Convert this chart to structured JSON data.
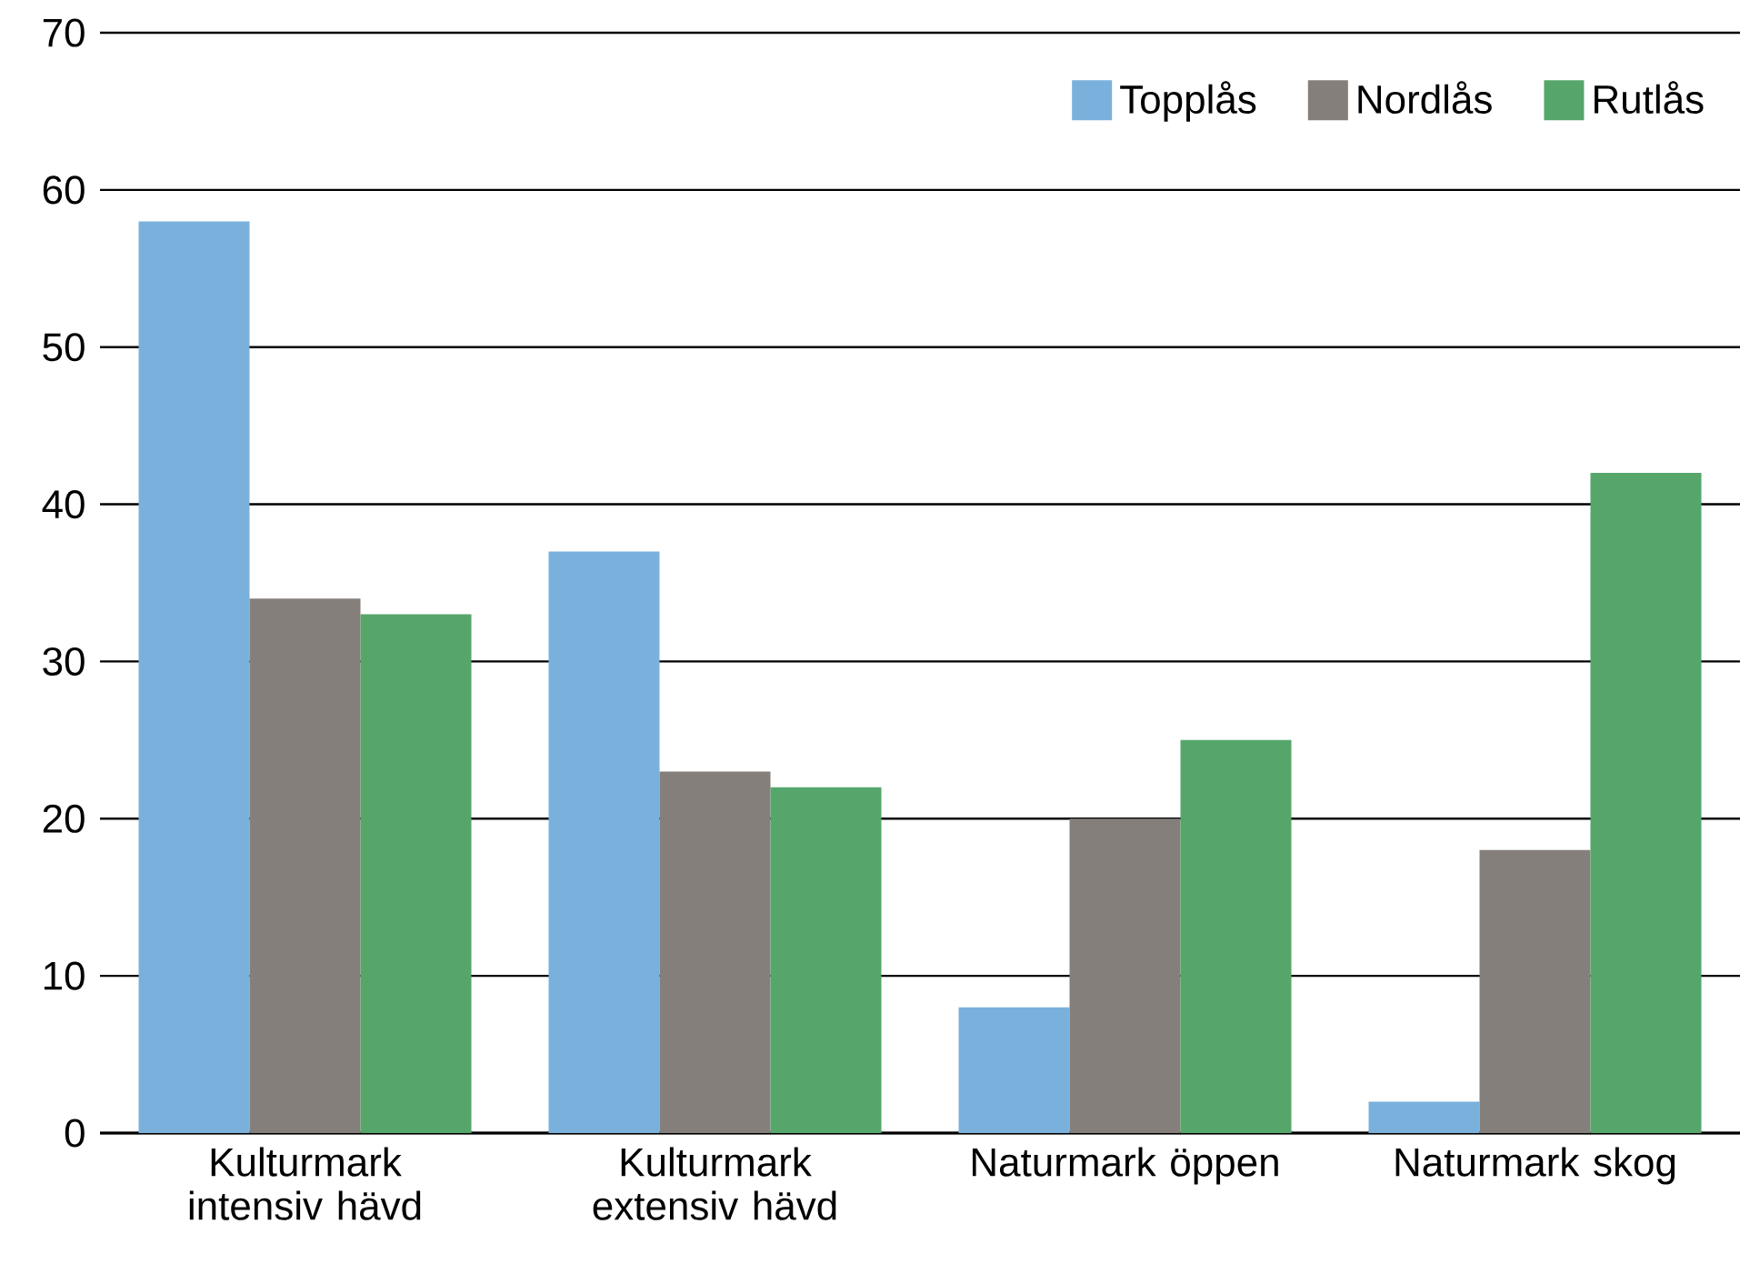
{
  "chart_data": {
    "type": "bar",
    "categories": [
      "Kulturmark intensiv hävd",
      "Kulturmark extensiv hävd",
      "Naturmark öppen",
      "Naturmark skog"
    ],
    "series": [
      {
        "name": "Topplås",
        "color": "#7ab1dc",
        "values": [
          58,
          37,
          8,
          2
        ]
      },
      {
        "name": "Nordlås",
        "color": "#857f7b",
        "values": [
          34,
          23,
          20,
          18
        ]
      },
      {
        "name": "Rutlås",
        "color": "#56a66b",
        "values": [
          33,
          22,
          25,
          42
        ]
      }
    ],
    "ylim": [
      0,
      70
    ],
    "yticks": [
      0,
      10,
      20,
      30,
      40,
      50,
      60,
      70
    ],
    "grid": "y",
    "legend": "top right"
  }
}
